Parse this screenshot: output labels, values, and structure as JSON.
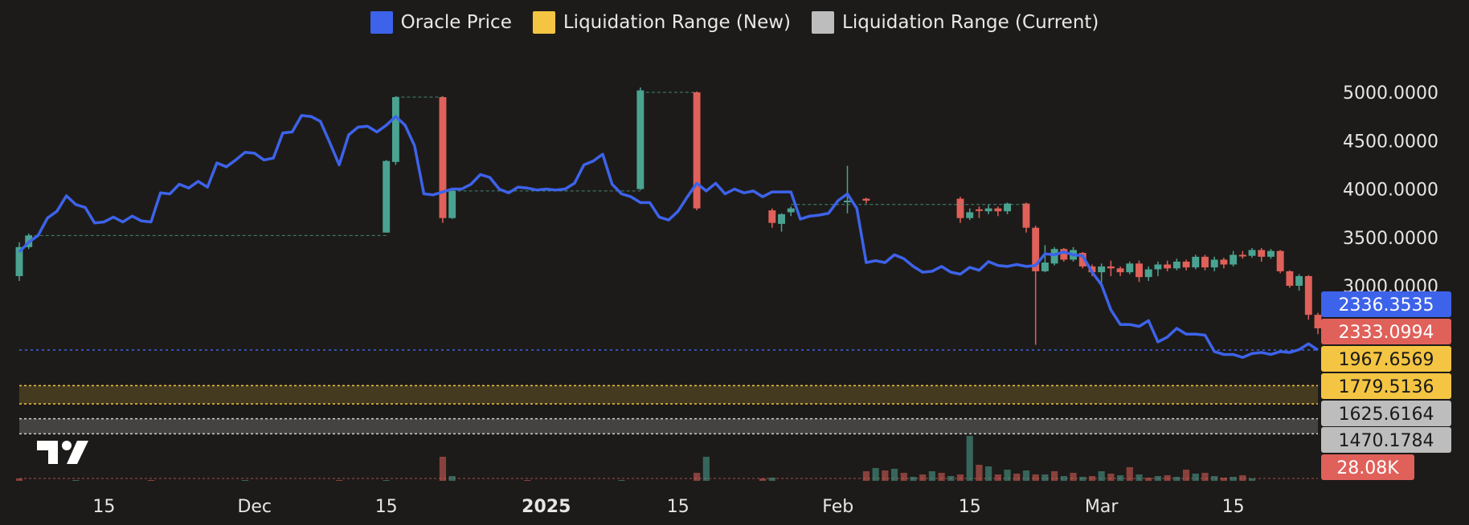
{
  "legend": [
    {
      "label": "Oracle Price",
      "color": "#3d63ea"
    },
    {
      "label": "Liquidation Range (New)",
      "color": "#f4c542"
    },
    {
      "label": "Liquidation Range (Current)",
      "color": "#bdbdbd"
    }
  ],
  "chart_data": {
    "type": "line",
    "title": "",
    "xlabel": "",
    "ylabel": "",
    "ylim": [
      1380,
      5000
    ],
    "grid": false,
    "legend_position": "top",
    "y_ticks": [
      "5000.0000",
      "4500.0000",
      "4000.0000",
      "3500.0000",
      "3000.0000"
    ],
    "x_ticks": [
      {
        "label": "15",
        "day": 15,
        "bold": false
      },
      {
        "label": "Dec",
        "day": 31,
        "bold": false
      },
      {
        "label": "15",
        "day": 45,
        "bold": false
      },
      {
        "label": "2025",
        "day": 62,
        "bold": true
      },
      {
        "label": "15",
        "day": 76,
        "bold": false
      },
      {
        "label": "Feb",
        "day": 93,
        "bold": false
      },
      {
        "label": "15",
        "day": 107,
        "bold": false
      },
      {
        "label": "Mar",
        "day": 121,
        "bold": false
      },
      {
        "label": "15",
        "day": 135,
        "bold": false
      }
    ],
    "series": [
      {
        "name": "Oracle Price",
        "color": "#3d63ea",
        "x": [
          6,
          6.5,
          7,
          8,
          9,
          10,
          11,
          12,
          13,
          14,
          15,
          16,
          17,
          18,
          19,
          20,
          21,
          22,
          23,
          24,
          25,
          26,
          27,
          28,
          29,
          30,
          31,
          32,
          33,
          34,
          35,
          36,
          37,
          38,
          39,
          40,
          41,
          42,
          43,
          44,
          45,
          46,
          47,
          48,
          49,
          50,
          51,
          52,
          53,
          54,
          55,
          56,
          57,
          58,
          59,
          60,
          61,
          62,
          63,
          64,
          65,
          66,
          67,
          68,
          69,
          70,
          71,
          72,
          73,
          74,
          75,
          76,
          77,
          78,
          79,
          80,
          81,
          82,
          83,
          84,
          85,
          86,
          87,
          88,
          89,
          90,
          91,
          92,
          93,
          94,
          95,
          96,
          97,
          98,
          99,
          100,
          101,
          102,
          103,
          104,
          105,
          106,
          107,
          108,
          109,
          110,
          111,
          112,
          113,
          114,
          115,
          116,
          117,
          118,
          119,
          120,
          121,
          122,
          123,
          124,
          125,
          126,
          127,
          128,
          129,
          130,
          131,
          132,
          133,
          134,
          135,
          136,
          137,
          138,
          139,
          140,
          141,
          142,
          143,
          144
        ],
        "values": [
          3350,
          3400,
          3450,
          3520,
          3700,
          3770,
          3930,
          3840,
          3810,
          3650,
          3660,
          3710,
          3660,
          3720,
          3670,
          3660,
          3960,
          3950,
          4050,
          4010,
          4080,
          4020,
          4270,
          4230,
          4300,
          4380,
          4370,
          4300,
          4320,
          4580,
          4590,
          4760,
          4750,
          4700,
          4480,
          4250,
          4560,
          4640,
          4650,
          4590,
          4660,
          4750,
          4660,
          4450,
          3950,
          3940,
          3970,
          4000,
          4000,
          4050,
          4150,
          4120,
          4000,
          3960,
          4020,
          4010,
          3990,
          4000,
          3990,
          4000,
          4060,
          4250,
          4290,
          4360,
          4050,
          3950,
          3920,
          3860,
          3860,
          3710,
          3680,
          3770,
          3920,
          4060,
          3980,
          4060,
          3950,
          4000,
          3960,
          3980,
          3920,
          3970,
          3970,
          3970,
          3690,
          3720,
          3730,
          3750,
          3880,
          3950,
          3800,
          3240,
          3260,
          3240,
          3320,
          3280,
          3200,
          3140,
          3150,
          3200,
          3140,
          3120,
          3190,
          3160,
          3250,
          3210,
          3200,
          3220,
          3200,
          3210,
          3330,
          3320,
          3350,
          3320,
          3310,
          3140,
          3010,
          2750,
          2600,
          2600,
          2580,
          2640,
          2420,
          2470,
          2560,
          2500,
          2500,
          2490,
          2320,
          2290,
          2290,
          2260,
          2300,
          2310,
          2290,
          2320,
          2310,
          2340,
          2400,
          2336
        ]
      },
      {
        "name": "Liquidation Range (New)",
        "color": "#f4c542",
        "range": [
          1779.5136,
          1967.6569
        ]
      },
      {
        "name": "Liquidation Range (Current)",
        "color": "#bdbdbd",
        "range": [
          1470.1784,
          1625.6164
        ]
      }
    ],
    "candles": [
      [
        6,
        3100,
        3400,
        3050,
        3450
      ],
      [
        7,
        3400,
        3520,
        3380,
        3540
      ],
      [
        45,
        3550,
        4290,
        3550,
        4300
      ],
      [
        46,
        4280,
        4950,
        4250,
        4960
      ],
      [
        51,
        4950,
        3700,
        3650,
        4960
      ],
      [
        52,
        3700,
        3980,
        3690,
        4000
      ],
      [
        72,
        4000,
        5020,
        3990,
        5050
      ],
      [
        78,
        5000,
        3800,
        3780,
        5010
      ],
      [
        86,
        3780,
        3650,
        3600,
        3800
      ],
      [
        87,
        3640,
        3740,
        3560,
        3750
      ],
      [
        88,
        3760,
        3800,
        3720,
        3820
      ],
      [
        94,
        3880,
        3880,
        3750,
        4240
      ],
      [
        96,
        3900,
        3880,
        3850,
        3910
      ],
      [
        106,
        3900,
        3700,
        3650,
        3920
      ],
      [
        107,
        3700,
        3760,
        3680,
        3800
      ],
      [
        108,
        3790,
        3780,
        3700,
        3820
      ],
      [
        109,
        3770,
        3800,
        3740,
        3840
      ],
      [
        110,
        3800,
        3770,
        3720,
        3820
      ],
      [
        111,
        3770,
        3850,
        3740,
        3860
      ],
      [
        113,
        3850,
        3600,
        3550,
        3860
      ],
      [
        114,
        3600,
        3150,
        2390,
        3620
      ],
      [
        115,
        3150,
        3240,
        3140,
        3420
      ],
      [
        116,
        3230,
        3380,
        3210,
        3400
      ],
      [
        117,
        3380,
        3270,
        3250,
        3390
      ],
      [
        118,
        3270,
        3370,
        3250,
        3400
      ],
      [
        119,
        3340,
        3200,
        3180,
        3350
      ],
      [
        120,
        3200,
        3140,
        3100,
        3220
      ],
      [
        121,
        3140,
        3200,
        3000,
        3230
      ],
      [
        122,
        3200,
        3180,
        3100,
        3260
      ],
      [
        123,
        3180,
        3140,
        3100,
        3200
      ],
      [
        124,
        3140,
        3230,
        3120,
        3250
      ],
      [
        125,
        3230,
        3090,
        3040,
        3260
      ],
      [
        126,
        3090,
        3170,
        3050,
        3200
      ],
      [
        127,
        3170,
        3220,
        3100,
        3250
      ],
      [
        128,
        3220,
        3180,
        3150,
        3260
      ],
      [
        129,
        3180,
        3250,
        3160,
        3280
      ],
      [
        130,
        3250,
        3190,
        3160,
        3270
      ],
      [
        131,
        3190,
        3300,
        3170,
        3320
      ],
      [
        132,
        3300,
        3190,
        3160,
        3320
      ],
      [
        133,
        3190,
        3270,
        3150,
        3300
      ],
      [
        134,
        3270,
        3220,
        3180,
        3290
      ],
      [
        135,
        3220,
        3320,
        3200,
        3360
      ],
      [
        136,
        3320,
        3310,
        3280,
        3360
      ],
      [
        137,
        3310,
        3370,
        3290,
        3390
      ],
      [
        138,
        3370,
        3300,
        3250,
        3390
      ],
      [
        139,
        3300,
        3360,
        3280,
        3380
      ],
      [
        140,
        3360,
        3150,
        3130,
        3370
      ],
      [
        141,
        3150,
        3000,
        2980,
        3160
      ],
      [
        142,
        3000,
        3100,
        2950,
        3120
      ],
      [
        143,
        3100,
        2700,
        2650,
        3110
      ],
      [
        144,
        2700,
        2560,
        2500,
        2720
      ]
    ],
    "volume": [
      [
        6,
        3
      ],
      [
        12,
        1
      ],
      [
        20,
        1
      ],
      [
        30,
        1
      ],
      [
        40,
        1
      ],
      [
        45,
        1
      ],
      [
        51,
        30
      ],
      [
        52,
        6
      ],
      [
        60,
        1
      ],
      [
        70,
        1
      ],
      [
        78,
        10
      ],
      [
        79,
        30
      ],
      [
        85,
        3
      ],
      [
        86,
        4
      ],
      [
        96,
        12
      ],
      [
        97,
        16
      ],
      [
        98,
        13
      ],
      [
        99,
        15
      ],
      [
        100,
        10
      ],
      [
        101,
        5
      ],
      [
        102,
        8
      ],
      [
        103,
        12
      ],
      [
        104,
        10
      ],
      [
        105,
        6
      ],
      [
        106,
        8
      ],
      [
        107,
        56
      ],
      [
        108,
        20
      ],
      [
        109,
        18
      ],
      [
        110,
        8
      ],
      [
        111,
        14
      ],
      [
        112,
        9
      ],
      [
        113,
        13
      ],
      [
        114,
        8
      ],
      [
        115,
        8
      ],
      [
        116,
        12
      ],
      [
        117,
        6
      ],
      [
        118,
        10
      ],
      [
        119,
        5
      ],
      [
        120,
        6
      ],
      [
        121,
        12
      ],
      [
        122,
        9
      ],
      [
        123,
        7
      ],
      [
        124,
        17
      ],
      [
        125,
        8
      ],
      [
        126,
        4
      ],
      [
        127,
        6
      ],
      [
        128,
        7
      ],
      [
        129,
        5
      ],
      [
        130,
        14
      ],
      [
        131,
        9
      ],
      [
        132,
        10
      ],
      [
        133,
        6
      ],
      [
        134,
        4
      ],
      [
        135,
        5
      ],
      [
        136,
        7
      ],
      [
        137,
        3
      ]
    ]
  },
  "price_badges": [
    {
      "value": "2336.3535",
      "bg": "#3d63ea",
      "fg": "#ffffff",
      "price": 2336.3535
    },
    {
      "value": "2333.0994",
      "bg": "#e0605a",
      "fg": "#ffffff",
      "price": 2333.0994
    },
    {
      "value": "1967.6569",
      "bg": "#f4c542",
      "fg": "#1a1a1a",
      "price": 1967.6569
    },
    {
      "value": "1779.5136",
      "bg": "#f4c542",
      "fg": "#1a1a1a",
      "price": 1779.5136
    },
    {
      "value": "1625.6164",
      "bg": "#bdbdbd",
      "fg": "#1a1a1a",
      "price": 1625.6164
    },
    {
      "value": "1470.1784",
      "bg": "#bdbdbd",
      "fg": "#1a1a1a",
      "price": 1470.1784
    },
    {
      "value": "28.08K",
      "bg": "#e0605a",
      "fg": "#ffffff",
      "price": null
    }
  ],
  "colors": {
    "up": "#4aa391",
    "down": "#e0605a",
    "price_line": "#3d63ea",
    "background": "#1d1b19"
  }
}
